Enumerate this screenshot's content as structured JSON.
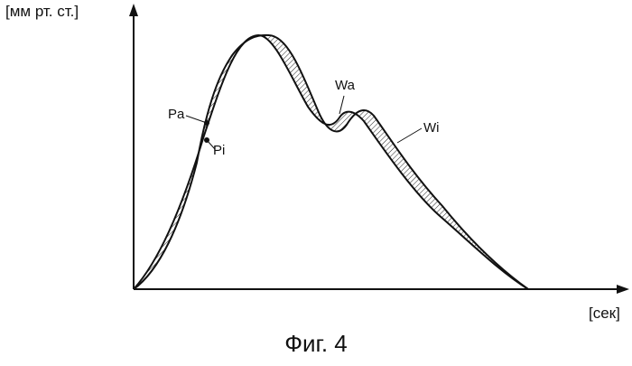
{
  "figure": {
    "y_axis_label": "[мм рт. ст.]",
    "x_axis_label": "[сек]",
    "caption": "Фиг. 4",
    "labels": {
      "pa": "Pa",
      "pi": "Pi",
      "wa": "Wa",
      "wi": "Wi"
    },
    "stroke_color": "#111111",
    "hatch_color": "#222222"
  }
}
